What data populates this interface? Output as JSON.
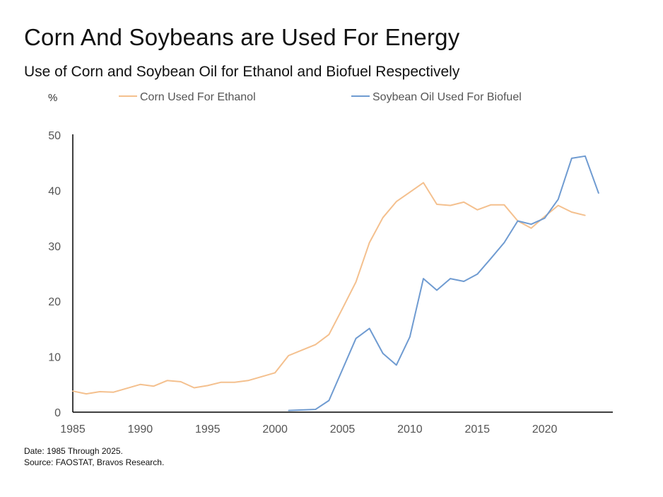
{
  "header": {
    "title": "Corn And Soybeans are Used For Energy",
    "subtitle": "Use of Corn and Soybean Oil for Ethanol and Biofuel Respectively"
  },
  "footer": {
    "date_note": "Date: 1985 Through 2025.",
    "source_note": "Source: FAOSTAT, Bravos Research."
  },
  "chart_data": {
    "type": "line",
    "title": "Corn And Soybeans are Used For Energy",
    "subtitle": "Use of Corn and Soybean Oil for Ethanol and Biofuel Respectively",
    "ylabel": "%",
    "xlabel": "",
    "xlim": [
      1985,
      2025
    ],
    "ylim": [
      0,
      50
    ],
    "x_ticks": [
      "1985",
      "1990",
      "1995",
      "2000",
      "2005",
      "2010",
      "2015",
      "2020"
    ],
    "y_ticks": [
      "0",
      "10",
      "20",
      "30",
      "40",
      "50"
    ],
    "grid": false,
    "legend_position": "top",
    "series": [
      {
        "name": "Corn Used For Ethanol",
        "color": "#f4c08e",
        "x": [
          1985,
          1986,
          1987,
          1988,
          1989,
          1990,
          1991,
          1992,
          1993,
          1994,
          1995,
          1996,
          1997,
          1998,
          1999,
          2000,
          2001,
          2002,
          2003,
          2004,
          2005,
          2006,
          2007,
          2008,
          2009,
          2010,
          2011,
          2012,
          2013,
          2014,
          2015,
          2016,
          2017,
          2018,
          2019,
          2020,
          2021,
          2022,
          2023,
          2024,
          2025
        ],
        "values": [
          3.8,
          3.3,
          3.7,
          3.6,
          4.3,
          5.0,
          4.7,
          5.7,
          5.5,
          4.4,
          4.8,
          5.4,
          5.4,
          5.7,
          6.4,
          7.1,
          10.2,
          11.2,
          12.2,
          14.0,
          18.7,
          23.5,
          30.6,
          35.1,
          38.0,
          39.7,
          41.4,
          37.5,
          37.3,
          37.9,
          36.5,
          37.4,
          37.4,
          34.5,
          33.2,
          35.3,
          37.3,
          36.1,
          35.5,
          null,
          null
        ]
      },
      {
        "name": "Soybean Oil Used For Biofuel",
        "color": "#6f9bd1",
        "x": [
          1985,
          1986,
          1987,
          1988,
          1989,
          1990,
          1991,
          1992,
          1993,
          1994,
          1995,
          1996,
          1997,
          1998,
          1999,
          2000,
          2001,
          2002,
          2003,
          2004,
          2005,
          2006,
          2007,
          2008,
          2009,
          2010,
          2011,
          2012,
          2013,
          2014,
          2015,
          2016,
          2017,
          2018,
          2019,
          2020,
          2021,
          2022,
          2023,
          2024,
          2025
        ],
        "values": [
          null,
          null,
          null,
          null,
          null,
          null,
          null,
          null,
          null,
          null,
          null,
          null,
          null,
          null,
          null,
          null,
          0.3,
          0.4,
          0.5,
          2.1,
          7.7,
          13.3,
          15.1,
          10.6,
          8.5,
          13.6,
          24.1,
          22.0,
          24.1,
          23.6,
          24.9,
          27.7,
          30.6,
          34.5,
          33.9,
          35.0,
          38.4,
          45.8,
          46.2,
          39.5,
          null
        ]
      }
    ]
  }
}
